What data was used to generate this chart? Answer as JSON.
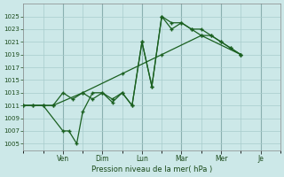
{
  "xlabel": "Pression niveau de la mer( hPa )",
  "background_color": "#cce8e8",
  "grid_color": "#a8cccc",
  "line_color": "#1a6020",
  "ylim": [
    1004,
    1027
  ],
  "yticks": [
    1005,
    1007,
    1009,
    1011,
    1013,
    1015,
    1017,
    1019,
    1021,
    1023,
    1025
  ],
  "xtick_labels": [
    "Ven",
    "Dim",
    "Lun",
    "Mar",
    "Mer",
    "Je"
  ],
  "xtick_positions": [
    2,
    4,
    6,
    8,
    10,
    12
  ],
  "xlim": [
    0,
    13
  ],
  "series1_x": [
    0,
    0.5,
    1.0,
    2.0,
    2.3,
    2.7,
    3.0,
    3.5,
    4.0,
    4.5,
    5.0,
    5.5,
    6.0,
    6.5,
    7.0,
    7.5,
    8.0,
    8.5,
    9.0,
    9.5,
    10.0,
    10.5,
    11.0
  ],
  "series1_y": [
    1011,
    1011,
    1011,
    1007,
    1007,
    1005,
    1010,
    1013,
    1013,
    1012,
    1013,
    1011,
    1021,
    1014,
    1025,
    1023,
    1024,
    1023,
    1023,
    1022,
    1021,
    1020,
    1019
  ],
  "series2_x": [
    0,
    0.5,
    1.0,
    1.5,
    2.0,
    2.5,
    3.0,
    3.5,
    4.0,
    4.5,
    5.0,
    5.5,
    6.0,
    6.5,
    7.0,
    7.5,
    8.0,
    8.5,
    9.0,
    9.5,
    10.0,
    10.5,
    11.0
  ],
  "series2_y": [
    1011,
    1011,
    1011,
    1011,
    1013,
    1012,
    1013,
    1012,
    1013,
    1011.5,
    1013,
    1011,
    1021,
    1014,
    1025,
    1024,
    1024,
    1023,
    1022,
    1022,
    1021,
    1020,
    1019
  ],
  "series3_x": [
    0,
    1.5,
    3.0,
    5.0,
    7.0,
    9.0,
    11.0
  ],
  "series3_y": [
    1011,
    1011,
    1013,
    1016,
    1019,
    1022,
    1019
  ]
}
